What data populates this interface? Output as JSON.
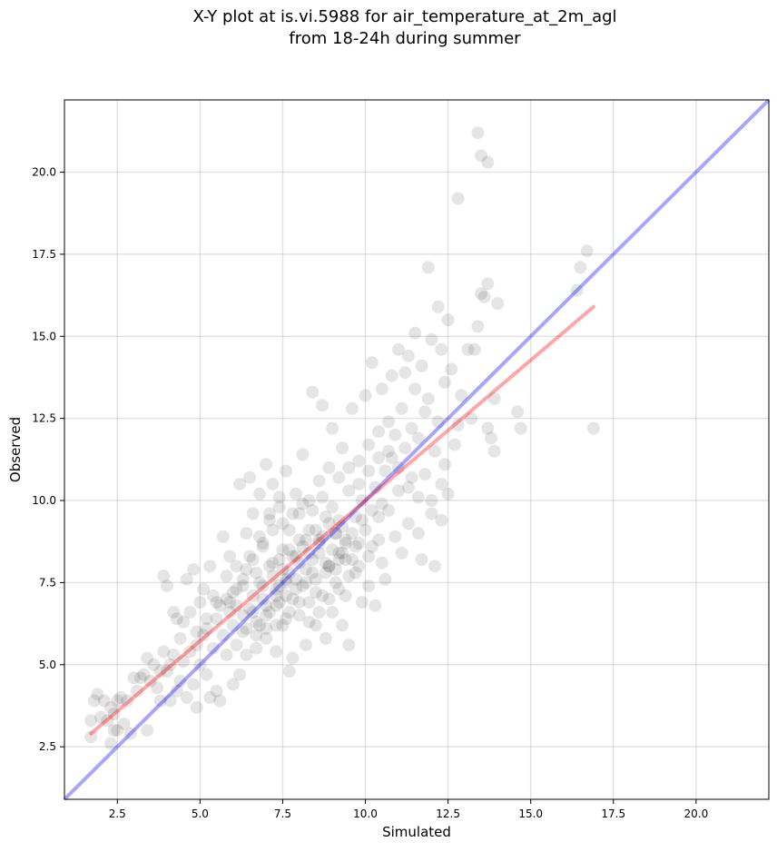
{
  "chart_data": {
    "type": "scatter",
    "title_line1": "X-Y plot at is.vi.5988 for air_temperature_at_2m_agl",
    "title_line2": "from 18-24h during summer",
    "xlabel": "Simulated",
    "ylabel": "Observed",
    "xlim": [
      0.9,
      22.2
    ],
    "ylim": [
      0.9,
      22.2
    ],
    "xticks": [
      2.5,
      5.0,
      7.5,
      10.0,
      12.5,
      15.0,
      17.5,
      20.0
    ],
    "yticks": [
      2.5,
      5.0,
      7.5,
      10.0,
      12.5,
      15.0,
      17.5,
      20.0
    ],
    "xtick_labels": [
      "2.5",
      "5.0",
      "7.5",
      "10.0",
      "12.5",
      "15.0",
      "17.5",
      "20.0"
    ],
    "ytick_labels": [
      "2.5",
      "5.0",
      "7.5",
      "10.0",
      "12.5",
      "15.0",
      "17.5",
      "20.0"
    ],
    "grid": true,
    "point_color": "#000000",
    "point_alpha": 0.1,
    "identity_line": {
      "color": "#0000ff",
      "alpha": 0.35,
      "x": [
        0.9,
        22.2
      ],
      "y": [
        0.9,
        22.2
      ]
    },
    "regression_line": {
      "color": "#ff0000",
      "alpha": 0.35,
      "x": [
        1.7,
        16.9
      ],
      "y": [
        2.9,
        15.9
      ]
    },
    "points": [
      [
        1.7,
        2.8
      ],
      [
        1.7,
        3.3
      ],
      [
        1.8,
        3.9
      ],
      [
        1.9,
        4.1
      ],
      [
        2.0,
        3.4
      ],
      [
        2.1,
        3.9
      ],
      [
        2.2,
        3.3
      ],
      [
        2.3,
        3.7
      ],
      [
        2.3,
        2.6
      ],
      [
        2.4,
        3.0
      ],
      [
        2.4,
        3.5
      ],
      [
        2.5,
        3.0
      ],
      [
        2.5,
        3.9
      ],
      [
        2.6,
        4.0
      ],
      [
        2.7,
        3.2
      ],
      [
        2.8,
        3.9
      ],
      [
        2.9,
        2.9
      ],
      [
        3.0,
        4.6
      ],
      [
        3.1,
        4.2
      ],
      [
        3.2,
        4.6
      ],
      [
        3.3,
        4.7
      ],
      [
        3.4,
        3.0
      ],
      [
        3.4,
        5.2
      ],
      [
        3.5,
        4.5
      ],
      [
        3.6,
        5.0
      ],
      [
        3.7,
        4.3
      ],
      [
        3.8,
        4.8
      ],
      [
        3.8,
        3.9
      ],
      [
        3.9,
        5.4
      ],
      [
        3.9,
        7.7
      ],
      [
        4.0,
        7.4
      ],
      [
        4.0,
        4.8
      ],
      [
        4.1,
        5.0
      ],
      [
        4.1,
        3.9
      ],
      [
        4.2,
        6.6
      ],
      [
        4.2,
        5.3
      ],
      [
        4.3,
        6.4
      ],
      [
        4.3,
        4.2
      ],
      [
        4.4,
        5.8
      ],
      [
        4.4,
        4.5
      ],
      [
        4.5,
        5.1
      ],
      [
        4.5,
        6.3
      ],
      [
        4.6,
        4.0
      ],
      [
        4.6,
        7.6
      ],
      [
        4.7,
        5.4
      ],
      [
        4.7,
        6.6
      ],
      [
        4.8,
        4.4
      ],
      [
        4.8,
        7.9
      ],
      [
        4.9,
        5.6
      ],
      [
        4.9,
        3.7
      ],
      [
        5.0,
        6.9
      ],
      [
        5.0,
        5.0
      ],
      [
        5.1,
        5.9
      ],
      [
        5.1,
        7.3
      ],
      [
        5.2,
        4.7
      ],
      [
        5.2,
        6.1
      ],
      [
        5.3,
        8.0
      ],
      [
        5.3,
        4.0
      ],
      [
        5.4,
        5.5
      ],
      [
        5.4,
        7.1
      ],
      [
        5.5,
        6.4
      ],
      [
        5.5,
        4.2
      ],
      [
        5.6,
        3.9
      ],
      [
        5.6,
        6.8
      ],
      [
        5.7,
        8.9
      ],
      [
        5.7,
        5.9
      ],
      [
        5.8,
        7.7
      ],
      [
        5.8,
        5.3
      ],
      [
        5.9,
        6.6
      ],
      [
        5.9,
        8.3
      ],
      [
        6.0,
        4.4
      ],
      [
        6.0,
        7.2
      ],
      [
        6.1,
        8.0
      ],
      [
        6.1,
        5.6
      ],
      [
        6.2,
        10.5
      ],
      [
        6.2,
        4.7
      ],
      [
        6.3,
        7.4
      ],
      [
        6.3,
        6.0
      ],
      [
        6.4,
        9.0
      ],
      [
        6.4,
        5.3
      ],
      [
        6.5,
        10.7
      ],
      [
        6.5,
        8.3
      ],
      [
        6.6,
        6.6
      ],
      [
        6.6,
        9.6
      ],
      [
        6.7,
        5.5
      ],
      [
        6.7,
        7.8
      ],
      [
        6.8,
        6.2
      ],
      [
        6.8,
        10.2
      ],
      [
        6.9,
        8.7
      ],
      [
        6.9,
        7.0
      ],
      [
        7.0,
        11.1
      ],
      [
        7.0,
        5.8
      ],
      [
        7.1,
        9.4
      ],
      [
        7.1,
        6.6
      ],
      [
        7.2,
        8.1
      ],
      [
        7.2,
        10.5
      ],
      [
        7.3,
        7.3
      ],
      [
        7.3,
        5.4
      ],
      [
        7.4,
        9.8
      ],
      [
        7.4,
        6.9
      ],
      [
        7.5,
        8.5
      ],
      [
        7.5,
        6.2
      ],
      [
        7.6,
        10.9
      ],
      [
        7.6,
        7.6
      ],
      [
        7.7,
        4.8
      ],
      [
        7.7,
        9.1
      ],
      [
        7.8,
        7.0
      ],
      [
        7.8,
        5.2
      ],
      [
        7.9,
        8.3
      ],
      [
        7.9,
        10.2
      ],
      [
        8.0,
        6.5
      ],
      [
        8.0,
        9.6
      ],
      [
        8.1,
        7.4
      ],
      [
        8.1,
        11.4
      ],
      [
        8.2,
        5.6
      ],
      [
        8.2,
        8.8
      ],
      [
        8.3,
        6.9
      ],
      [
        8.3,
        10.0
      ],
      [
        8.4,
        13.3
      ],
      [
        8.4,
        7.8
      ],
      [
        8.5,
        9.1
      ],
      [
        8.5,
        6.2
      ],
      [
        8.6,
        10.6
      ],
      [
        8.6,
        8.4
      ],
      [
        8.7,
        12.9
      ],
      [
        8.7,
        7.1
      ],
      [
        8.8,
        9.5
      ],
      [
        8.8,
        5.8
      ],
      [
        8.9,
        11.0
      ],
      [
        8.9,
        8.0
      ],
      [
        9.0,
        6.6
      ],
      [
        9.0,
        12.2
      ],
      [
        9.1,
        9.0
      ],
      [
        9.1,
        7.5
      ],
      [
        9.2,
        10.7
      ],
      [
        9.2,
        8.4
      ],
      [
        9.3,
        6.2
      ],
      [
        9.3,
        11.6
      ],
      [
        9.4,
        8.8
      ],
      [
        9.4,
        7.1
      ],
      [
        9.5,
        10.3
      ],
      [
        9.5,
        5.6
      ],
      [
        9.6,
        8.2
      ],
      [
        9.6,
        12.8
      ],
      [
        9.7,
        9.5
      ],
      [
        9.7,
        7.8
      ],
      [
        9.8,
        11.2
      ],
      [
        9.8,
        8.7
      ],
      [
        9.9,
        6.9
      ],
      [
        9.9,
        10.0
      ],
      [
        10.0,
        13.2
      ],
      [
        10.0,
        9.1
      ],
      [
        10.1,
        7.4
      ],
      [
        10.1,
        11.7
      ],
      [
        10.2,
        14.2
      ],
      [
        10.2,
        8.6
      ],
      [
        10.3,
        10.4
      ],
      [
        10.3,
        6.8
      ],
      [
        10.4,
        12.1
      ],
      [
        10.4,
        9.5
      ],
      [
        10.5,
        13.4
      ],
      [
        10.5,
        8.1
      ],
      [
        10.6,
        10.9
      ],
      [
        10.6,
        7.6
      ],
      [
        10.7,
        12.4
      ],
      [
        10.7,
        9.7
      ],
      [
        10.8,
        13.8
      ],
      [
        10.8,
        11.3
      ],
      [
        10.9,
        8.9
      ],
      [
        10.9,
        12.0
      ],
      [
        11.0,
        14.6
      ],
      [
        11.0,
        10.3
      ],
      [
        11.1,
        12.8
      ],
      [
        11.1,
        8.4
      ],
      [
        11.2,
        11.6
      ],
      [
        11.2,
        13.9
      ],
      [
        11.3,
        9.3
      ],
      [
        11.3,
        14.4
      ],
      [
        11.4,
        12.2
      ],
      [
        11.4,
        10.7
      ],
      [
        11.5,
        15.1
      ],
      [
        11.5,
        13.4
      ],
      [
        11.6,
        9.0
      ],
      [
        11.6,
        11.9
      ],
      [
        11.7,
        14.1
      ],
      [
        11.7,
        8.2
      ],
      [
        11.8,
        12.7
      ],
      [
        11.8,
        10.8
      ],
      [
        11.9,
        17.1
      ],
      [
        11.9,
        13.1
      ],
      [
        12.0,
        9.6
      ],
      [
        12.0,
        14.9
      ],
      [
        12.1,
        11.5
      ],
      [
        12.1,
        8.0
      ],
      [
        12.2,
        15.9
      ],
      [
        12.2,
        12.4
      ],
      [
        12.3,
        14.6
      ],
      [
        12.3,
        9.4
      ],
      [
        12.4,
        13.6
      ],
      [
        12.4,
        11.1
      ],
      [
        12.5,
        15.5
      ],
      [
        12.5,
        10.2
      ],
      [
        12.6,
        14.0
      ],
      [
        12.7,
        11.7
      ],
      [
        12.8,
        12.3
      ],
      [
        12.8,
        19.2
      ],
      [
        12.9,
        13.2
      ],
      [
        13.1,
        14.6
      ],
      [
        13.2,
        12.5
      ],
      [
        13.3,
        14.6
      ],
      [
        13.4,
        21.2
      ],
      [
        13.4,
        15.3
      ],
      [
        13.5,
        20.5
      ],
      [
        13.5,
        16.3
      ],
      [
        13.6,
        16.2
      ],
      [
        13.7,
        20.3
      ],
      [
        13.7,
        16.6
      ],
      [
        13.7,
        12.2
      ],
      [
        13.8,
        11.9
      ],
      [
        13.9,
        13.1
      ],
      [
        13.9,
        11.5
      ],
      [
        14.0,
        16.0
      ],
      [
        14.6,
        12.7
      ],
      [
        14.7,
        12.2
      ],
      [
        16.4,
        16.4
      ],
      [
        16.5,
        17.1
      ],
      [
        16.7,
        17.6
      ],
      [
        16.9,
        12.2
      ],
      [
        6.9,
        7.4
      ],
      [
        7.2,
        7.7
      ],
      [
        7.5,
        7.9
      ],
      [
        7.8,
        8.3
      ],
      [
        8.1,
        8.6
      ],
      [
        8.4,
        8.2
      ],
      [
        8.7,
        8.9
      ],
      [
        9.0,
        8.5
      ],
      [
        9.3,
        8.4
      ],
      [
        7.0,
        6.8
      ],
      [
        7.3,
        7.1
      ],
      [
        7.6,
        7.5
      ],
      [
        7.9,
        7.6
      ],
      [
        8.2,
        7.9
      ],
      [
        8.5,
        7.6
      ],
      [
        8.8,
        8.1
      ],
      [
        9.1,
        9.0
      ],
      [
        9.4,
        8.7
      ],
      [
        6.6,
        7.1
      ],
      [
        6.8,
        7.5
      ],
      [
        7.1,
        8.0
      ],
      [
        7.4,
        8.2
      ],
      [
        7.7,
        8.5
      ],
      [
        8.0,
        8.8
      ],
      [
        8.3,
        9.1
      ],
      [
        8.6,
        8.8
      ],
      [
        8.9,
        9.3
      ],
      [
        9.2,
        9.4
      ],
      [
        6.5,
        6.7
      ],
      [
        6.7,
        6.3
      ],
      [
        7.0,
        6.5
      ],
      [
        7.3,
        6.8
      ],
      [
        7.6,
        7.1
      ],
      [
        7.9,
        7.3
      ],
      [
        8.2,
        7.5
      ],
      [
        8.5,
        7.2
      ],
      [
        8.8,
        7.8
      ],
      [
        9.1,
        7.9
      ],
      [
        9.4,
        8.2
      ],
      [
        9.7,
        8.6
      ],
      [
        6.3,
        7.6
      ],
      [
        6.6,
        8.2
      ],
      [
        6.9,
        8.6
      ],
      [
        7.2,
        9.1
      ],
      [
        7.5,
        9.3
      ],
      [
        7.8,
        9.6
      ],
      [
        8.1,
        9.9
      ],
      [
        8.4,
        9.7
      ],
      [
        8.7,
        10.1
      ],
      [
        9.0,
        9.8
      ],
      [
        9.3,
        9.2
      ],
      [
        9.6,
        9.0
      ],
      [
        9.9,
        9.4
      ],
      [
        10.2,
        9.7
      ],
      [
        10.5,
        9.9
      ],
      [
        5.9,
        6.9
      ],
      [
        6.1,
        7.3
      ],
      [
        6.3,
        6.5
      ],
      [
        6.0,
        6.2
      ],
      [
        6.4,
        7.9
      ],
      [
        7.7,
        6.6
      ],
      [
        8.0,
        6.9
      ],
      [
        8.3,
        6.3
      ],
      [
        8.6,
        6.6
      ],
      [
        8.9,
        7.0
      ],
      [
        9.2,
        7.3
      ],
      [
        9.5,
        7.7
      ],
      [
        9.8,
        8.0
      ],
      [
        10.1,
        8.3
      ],
      [
        10.4,
        8.8
      ],
      [
        7.4,
        7.4
      ],
      [
        7.7,
        7.8
      ],
      [
        8.0,
        8.1
      ],
      [
        8.3,
        8.4
      ],
      [
        8.6,
        8.7
      ],
      [
        8.9,
        8.0
      ],
      [
        9.2,
        8.2
      ],
      [
        6.8,
        8.9
      ],
      [
        7.1,
        9.6
      ],
      [
        7.4,
        10.1
      ],
      [
        9.5,
        11.0
      ],
      [
        9.8,
        10.5
      ],
      [
        10.1,
        10.9
      ],
      [
        10.4,
        11.3
      ],
      [
        10.7,
        11.5
      ],
      [
        11.0,
        11.0
      ],
      [
        11.3,
        10.4
      ],
      [
        11.6,
        10.1
      ],
      [
        12.0,
        10.0
      ],
      [
        12.3,
        10.5
      ],
      [
        4.9,
        6.0
      ],
      [
        5.2,
        6.4
      ],
      [
        5.5,
        6.9
      ],
      [
        5.8,
        7.0
      ],
      [
        6.1,
        6.8
      ],
      [
        6.4,
        6.1
      ],
      [
        6.7,
        5.9
      ],
      [
        7.0,
        6.1
      ],
      [
        7.3,
        6.2
      ],
      [
        7.6,
        6.4
      ]
    ]
  }
}
